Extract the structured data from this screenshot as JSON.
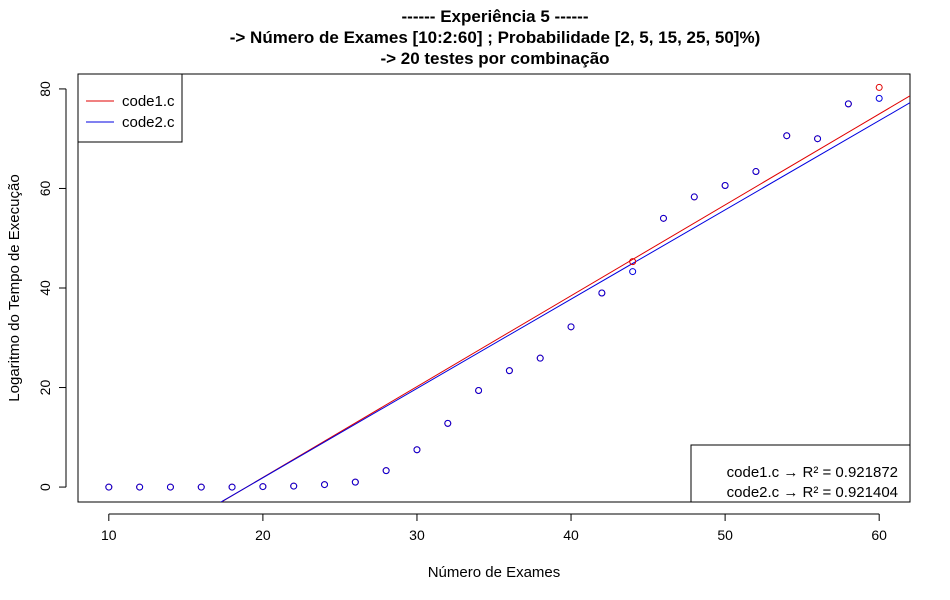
{
  "chart_data": {
    "type": "scatter",
    "title_lines": [
      "------ Experiência 5 ------",
      "-> Número de Exames [10:2:60] ; Probabilidade [2, 5, 15, 25, 50]%)",
      "-> 20 testes por combinação"
    ],
    "xlabel": "Número de Exames",
    "ylabel": "Logaritmo do Tempo de Execução",
    "xlim": [
      8,
      62
    ],
    "ylim": [
      -3,
      83
    ],
    "xticks": [
      10,
      20,
      30,
      40,
      50,
      60
    ],
    "yticks": [
      0,
      20,
      40,
      60,
      80
    ],
    "grid": false,
    "legend_position": "top-left",
    "series": [
      {
        "name": "code1.c",
        "color": "#e00000",
        "x": [
          10,
          12,
          14,
          16,
          18,
          20,
          22,
          24,
          26,
          28,
          30,
          32,
          34,
          36,
          38,
          40,
          42,
          44,
          46,
          48,
          50,
          52,
          54,
          56,
          58,
          60
        ],
        "y": [
          0,
          0,
          0,
          0,
          0,
          0.1,
          0.2,
          0.5,
          1.0,
          3.3,
          7.5,
          12.8,
          19.4,
          23.4,
          25.9,
          32.2,
          39.0,
          45.3,
          54.0,
          58.3,
          60.6,
          63.4,
          70.6,
          70.0,
          77.0,
          80.3
        ],
        "fit": {
          "slope": 1.826,
          "intercept": -34.6
        }
      },
      {
        "name": "code2.c",
        "color": "#0000e0",
        "x": [
          10,
          12,
          14,
          16,
          18,
          20,
          22,
          24,
          26,
          28,
          30,
          32,
          34,
          36,
          38,
          40,
          42,
          44,
          46,
          48,
          50,
          52,
          54,
          56,
          58,
          60
        ],
        "y": [
          0,
          0,
          0,
          0,
          0,
          0.1,
          0.2,
          0.5,
          1.0,
          3.3,
          7.5,
          12.8,
          19.4,
          23.4,
          25.9,
          32.2,
          39.0,
          43.3,
          54.0,
          58.3,
          60.6,
          63.4,
          70.6,
          70.0,
          77.0,
          78.1
        ],
        "fit": {
          "slope": 1.794,
          "intercept": -34.0
        }
      }
    ],
    "annotations": [
      "code1.c → R² = 0.921872",
      "code2.c → R² = 0.921404"
    ]
  }
}
